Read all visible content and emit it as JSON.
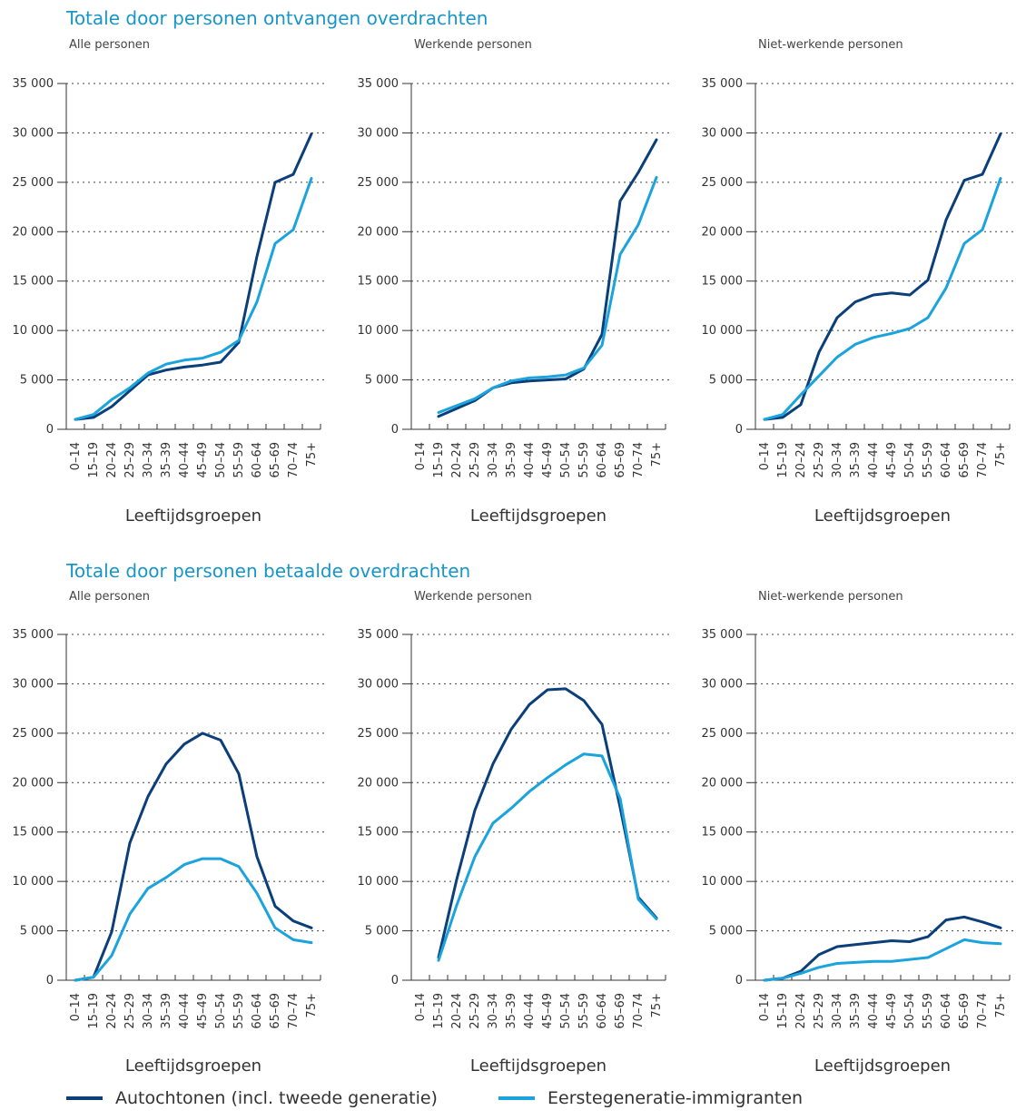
{
  "sections": [
    {
      "title": "Totale door personen ontvangen overdrachten"
    },
    {
      "title": "Totale door personen betaalde overdrachten"
    }
  ],
  "legend": {
    "series_a": "Autochtonen (incl. tweede generatie)",
    "series_b": "Eerstegeneratie-immigranten",
    "color_a": "#0a3f7a",
    "color_b": "#1aa3dc"
  },
  "chart_data": [
    {
      "type": "line",
      "section": 0,
      "subtitle": "Alle personen",
      "xlabel": "Leeftijdsgroepen",
      "categories": [
        "0–14",
        "15–19",
        "20–24",
        "25–29",
        "30–34",
        "35–39",
        "40–44",
        "45–49",
        "50–54",
        "55–59",
        "60–64",
        "65–69",
        "70–74",
        "75+"
      ],
      "ylim": [
        0,
        35000
      ],
      "yticks": [
        "0",
        "5 000",
        "10 000",
        "15 000",
        "20 000",
        "25 000",
        "30 000",
        "35 000"
      ],
      "grid": "dotted horizontal",
      "series": [
        {
          "name": "Autochtonen (incl. tweede generatie)",
          "values": [
            1000,
            1200,
            2300,
            3900,
            5500,
            6000,
            6300,
            6500,
            6800,
            8800,
            17500,
            25000,
            25800,
            29900
          ]
        },
        {
          "name": "Eerstegeneratie-immigranten",
          "values": [
            1000,
            1500,
            3000,
            4200,
            5700,
            6600,
            7000,
            7200,
            7800,
            9000,
            12900,
            18800,
            20200,
            25400
          ]
        }
      ]
    },
    {
      "type": "line",
      "section": 0,
      "subtitle": "Werkende personen",
      "xlabel": "Leeftijdsgroepen",
      "categories": [
        "0–14",
        "15–19",
        "20–24",
        "25–29",
        "30–34",
        "35–39",
        "40–44",
        "45–49",
        "50–54",
        "55–59",
        "60–64",
        "65–69",
        "70–74",
        "75+"
      ],
      "ylim": [
        0,
        35000
      ],
      "yticks": [
        "0",
        "5 000",
        "10 000",
        "15 000",
        "20 000",
        "25 000",
        "30 000",
        "35 000"
      ],
      "grid": "dotted horizontal",
      "series": [
        {
          "name": "Autochtonen (incl. tweede generatie)",
          "values": [
            null,
            1300,
            2100,
            2900,
            4200,
            4700,
            4900,
            5000,
            5100,
            6100,
            9600,
            23100,
            26000,
            29300
          ]
        },
        {
          "name": "Eerstegeneratie-immigranten",
          "values": [
            null,
            1700,
            2400,
            3100,
            4200,
            4900,
            5200,
            5300,
            5500,
            6200,
            8500,
            17700,
            20700,
            25500
          ]
        }
      ]
    },
    {
      "type": "line",
      "section": 0,
      "subtitle": "Niet-werkende personen",
      "xlabel": "Leeftijdsgroepen",
      "categories": [
        "0–14",
        "15–19",
        "20–24",
        "25–29",
        "30–34",
        "35–39",
        "40–44",
        "45–49",
        "50–54",
        "55–59",
        "60–64",
        "65–69",
        "70–74",
        "75+"
      ],
      "ylim": [
        0,
        35000
      ],
      "yticks": [
        "0",
        "5 000",
        "10 000",
        "15 000",
        "20 000",
        "25 000",
        "30 000",
        "35 000"
      ],
      "grid": "dotted horizontal",
      "series": [
        {
          "name": "Autochtonen (incl. tweede generatie)",
          "values": [
            1000,
            1200,
            2500,
            7800,
            11300,
            12900,
            13600,
            13800,
            13600,
            15100,
            21200,
            25200,
            25800,
            29900
          ]
        },
        {
          "name": "Eerstegeneratie-immigranten",
          "values": [
            1000,
            1500,
            3500,
            5400,
            7300,
            8600,
            9300,
            9700,
            10200,
            11300,
            14300,
            18800,
            20200,
            25400
          ]
        }
      ]
    },
    {
      "type": "line",
      "section": 1,
      "subtitle": "Alle personen",
      "xlabel": "Leeftijdsgroepen",
      "categories": [
        "0–14",
        "15–19",
        "20–24",
        "25–29",
        "30–34",
        "35–39",
        "40–44",
        "45–49",
        "50–54",
        "55–59",
        "60–64",
        "65–69",
        "70–74",
        "75+"
      ],
      "ylim": [
        0,
        35000
      ],
      "yticks": [
        "0",
        "5 000",
        "10 000",
        "15 000",
        "20 000",
        "25 000",
        "30 000",
        "35 000"
      ],
      "grid": "dotted horizontal",
      "series": [
        {
          "name": "Autochtonen (incl. tweede generatie)",
          "values": [
            0,
            300,
            4900,
            13900,
            18600,
            21900,
            23900,
            25000,
            24300,
            20900,
            12500,
            7500,
            6000,
            5300
          ]
        },
        {
          "name": "Eerstegeneratie-immigranten",
          "values": [
            0,
            300,
            2500,
            6700,
            9300,
            10400,
            11700,
            12300,
            12300,
            11500,
            8800,
            5300,
            4100,
            3800
          ]
        }
      ]
    },
    {
      "type": "line",
      "section": 1,
      "subtitle": "Werkende personen",
      "xlabel": "Leeftijdsgroepen",
      "categories": [
        "0–14",
        "15–19",
        "20–24",
        "25–29",
        "30–34",
        "35–39",
        "40–44",
        "45–49",
        "50–54",
        "55–59",
        "60–64",
        "65–69",
        "70–74",
        "75+"
      ],
      "ylim": [
        0,
        35000
      ],
      "yticks": [
        "0",
        "5 000",
        "10 000",
        "15 000",
        "20 000",
        "25 000",
        "30 000",
        "35 000"
      ],
      "grid": "dotted horizontal",
      "series": [
        {
          "name": "Autochtonen (incl. tweede generatie)",
          "values": [
            null,
            2300,
            10200,
            17200,
            21900,
            25400,
            27900,
            29400,
            29500,
            28300,
            25900,
            17500,
            8400,
            6300
          ]
        },
        {
          "name": "Eerstegeneratie-immigranten",
          "values": [
            null,
            2000,
            7600,
            12500,
            15900,
            17400,
            19100,
            20500,
            21800,
            22900,
            22700,
            18400,
            8200,
            6200
          ]
        }
      ]
    },
    {
      "type": "line",
      "section": 1,
      "subtitle": "Niet-werkende personen",
      "xlabel": "Leeftijdsgroepen",
      "categories": [
        "0–14",
        "15–19",
        "20–24",
        "25–29",
        "30–34",
        "35–39",
        "40–44",
        "45–49",
        "50–54",
        "55–59",
        "60–64",
        "65–69",
        "70–74",
        "75+"
      ],
      "ylim": [
        0,
        35000
      ],
      "yticks": [
        "0",
        "5 000",
        "10 000",
        "15 000",
        "20 000",
        "25 000",
        "30 000",
        "35 000"
      ],
      "grid": "dotted horizontal",
      "series": [
        {
          "name": "Autochtonen (incl. tweede generatie)",
          "values": [
            0,
            200,
            900,
            2600,
            3400,
            3600,
            3800,
            4000,
            3900,
            4400,
            6100,
            6400,
            5900,
            5300
          ]
        },
        {
          "name": "Eerstegeneratie-immigranten",
          "values": [
            0,
            200,
            700,
            1300,
            1700,
            1800,
            1900,
            1900,
            2100,
            2300,
            3200,
            4100,
            3800,
            3700
          ]
        }
      ]
    }
  ]
}
